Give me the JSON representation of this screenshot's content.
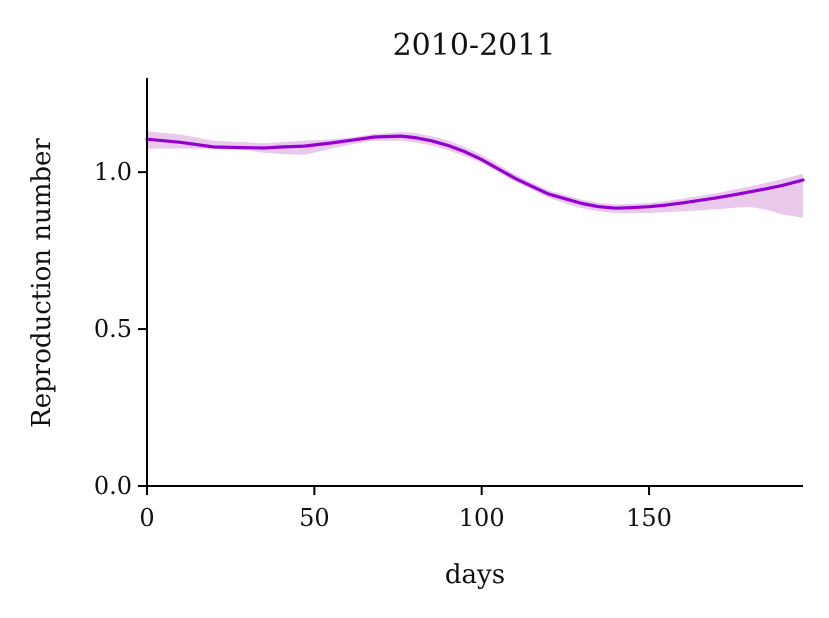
{
  "chart_data": {
    "type": "line",
    "title": "2010-2011",
    "xlabel": "days",
    "ylabel": "Reproduction number",
    "xlim": [
      0,
      196
    ],
    "ylim": [
      0,
      1.3
    ],
    "x_ticks": [
      0,
      50,
      100,
      150
    ],
    "x_tick_labels": [
      "0",
      "50",
      "100",
      "150"
    ],
    "y_ticks": [
      0,
      0.5,
      1.0
    ],
    "y_tick_labels": [
      "0.0",
      "0.5",
      "1.0"
    ],
    "grid": false,
    "colors": {
      "line": "#9400d3",
      "band": "#e9c9ec"
    },
    "series": [
      {
        "x": [
          0,
          10,
          20,
          30,
          35,
          40,
          47,
          55,
          62,
          68,
          76,
          80,
          85,
          90,
          95,
          100,
          105,
          110,
          115,
          120,
          125,
          130,
          135,
          140,
          145,
          150,
          155,
          160,
          165,
          170,
          175,
          180,
          185,
          190,
          196
        ],
        "y": [
          1.105,
          1.095,
          1.08,
          1.078,
          1.077,
          1.08,
          1.083,
          1.093,
          1.103,
          1.112,
          1.115,
          1.11,
          1.1,
          1.085,
          1.065,
          1.04,
          1.01,
          0.98,
          0.955,
          0.93,
          0.915,
          0.9,
          0.89,
          0.885,
          0.887,
          0.89,
          0.895,
          0.902,
          0.91,
          0.918,
          0.927,
          0.937,
          0.947,
          0.958,
          0.975
        ],
        "lower": [
          1.075,
          1.075,
          1.075,
          1.07,
          1.062,
          1.058,
          1.055,
          1.075,
          1.09,
          1.1,
          1.1,
          1.095,
          1.085,
          1.07,
          1.05,
          1.03,
          1.0,
          0.97,
          0.945,
          0.918,
          0.9,
          0.885,
          0.875,
          0.87,
          0.87,
          0.87,
          0.872,
          0.875,
          0.878,
          0.882,
          0.886,
          0.89,
          0.88,
          0.865,
          0.855
        ],
        "upper": [
          1.13,
          1.12,
          1.1,
          1.095,
          1.092,
          1.095,
          1.1,
          1.105,
          1.112,
          1.122,
          1.128,
          1.125,
          1.115,
          1.1,
          1.08,
          1.055,
          1.025,
          0.993,
          0.967,
          0.942,
          0.927,
          0.912,
          0.902,
          0.897,
          0.899,
          0.902,
          0.907,
          0.915,
          0.924,
          0.933,
          0.943,
          0.954,
          0.966,
          0.978,
          0.995
        ]
      }
    ]
  }
}
